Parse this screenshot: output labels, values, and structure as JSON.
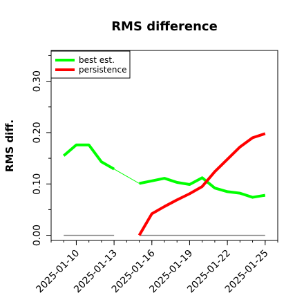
{
  "chart_data": {
    "type": "line",
    "title": "RMS difference",
    "xlabel": "",
    "ylabel": "RMS diff.",
    "ylim": [
      -0.01,
      0.36
    ],
    "xlim": [
      "2025-01-08",
      "2025-01-26"
    ],
    "yticks": [
      "0.00",
      "0.10",
      "0.20",
      "0.30"
    ],
    "ytick_values": [
      0.0,
      0.1,
      0.2,
      0.3
    ],
    "xticks": [
      "2025-01-10",
      "2025-01-13",
      "2025-01-16",
      "2025-01-19",
      "2025-01-22",
      "2025-01-25"
    ],
    "legend_position": "top-left",
    "grid": false,
    "series": [
      {
        "name": "best est.",
        "color": "#00ff00",
        "points": [
          [
            "2025-01-09",
            0.155
          ],
          [
            "2025-01-10",
            0.176
          ],
          [
            "2025-01-11",
            0.176
          ],
          [
            "2025-01-12",
            0.143
          ],
          [
            "2025-01-13",
            0.129
          ],
          [
            "2025-01-15",
            0.101
          ],
          [
            "2025-01-16",
            0.106
          ],
          [
            "2025-01-17",
            0.111
          ],
          [
            "2025-01-18",
            0.103
          ],
          [
            "2025-01-19",
            0.099
          ],
          [
            "2025-01-20",
            0.112
          ],
          [
            "2025-01-21",
            0.092
          ],
          [
            "2025-01-22",
            0.085
          ],
          [
            "2025-01-23",
            0.082
          ],
          [
            "2025-01-24",
            0.074
          ],
          [
            "2025-01-25",
            0.078
          ]
        ],
        "gap_after_index": 4
      },
      {
        "name": "persistence",
        "color": "#ff0000",
        "points": [
          [
            "2025-01-15",
            0.0
          ],
          [
            "2025-01-16",
            0.042
          ],
          [
            "2025-01-17",
            0.056
          ],
          [
            "2025-01-18",
            0.069
          ],
          [
            "2025-01-19",
            0.081
          ],
          [
            "2025-01-20",
            0.095
          ],
          [
            "2025-01-21",
            0.124
          ],
          [
            "2025-01-22",
            0.148
          ],
          [
            "2025-01-23",
            0.172
          ],
          [
            "2025-01-24",
            0.19
          ],
          [
            "2025-01-25",
            0.198
          ]
        ]
      }
    ],
    "reference_segments": [
      {
        "color": "#808080",
        "y": 0.0,
        "from": "2025-01-09",
        "to": "2025-01-13"
      },
      {
        "color": "#808080",
        "y": 0.0,
        "from": "2025-01-15",
        "to": "2025-01-25"
      }
    ]
  }
}
